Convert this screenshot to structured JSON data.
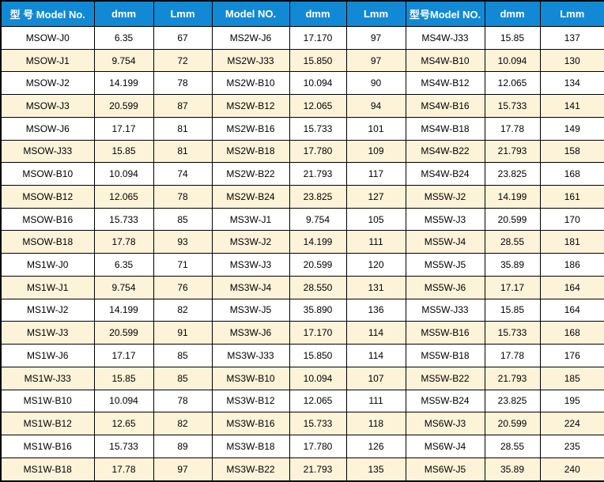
{
  "table": {
    "headers": [
      "型 号 Model No.",
      "dmm",
      "Lmm",
      "Model NO.",
      "dmm",
      "Lmm",
      "型号Model NO.",
      "dmm",
      "Lmm"
    ],
    "rows": [
      [
        "MSOW-J0",
        "6.35",
        "67",
        "MS2W-J6",
        "17.170",
        "97",
        "MS4W-J33",
        "15.85",
        "137"
      ],
      [
        "MSOW-J1",
        "9.754",
        "72",
        "MS2W-J33",
        "15.850",
        "97",
        "MS4W-B10",
        "10.094",
        "130"
      ],
      [
        "MSOW-J2",
        "14.199",
        "78",
        "MS2W-B10",
        "10.094",
        "90",
        "MS4W-B12",
        "12.065",
        "134"
      ],
      [
        "MSOW-J3",
        "20.599",
        "87",
        "MS2W-B12",
        "12.065",
        "94",
        "MS4W-B16",
        "15.733",
        "141"
      ],
      [
        "MSOW-J6",
        "17.17",
        "81",
        "MS2W-B16",
        "15.733",
        "101",
        "MS4W-B18",
        "17.78",
        "149"
      ],
      [
        "MSOW-J33",
        "15.85",
        "81",
        "MS2W-B18",
        "17.780",
        "109",
        "MS4W-B22",
        "21.793",
        "158"
      ],
      [
        "MSOW-B10",
        "10.094",
        "74",
        "MS2W-B22",
        "21.793",
        "117",
        "MS4W-B24",
        "23.825",
        "168"
      ],
      [
        "MSOW-B12",
        "12.065",
        "78",
        "MS2W-B24",
        "23.825",
        "127",
        "MS5W-J2",
        "14.199",
        "161"
      ],
      [
        "MSOW-B16",
        "15.733",
        "85",
        "MS3W-J1",
        "9.754",
        "105",
        "MS5W-J3",
        "20.599",
        "170"
      ],
      [
        "MSOW-B18",
        "17.78",
        "93",
        "MS3W-J2",
        "14.199",
        "111",
        "MS5W-J4",
        "28.55",
        "181"
      ],
      [
        "MS1W-J0",
        "6.35",
        "71",
        "MS3W-J3",
        "20.599",
        "120",
        "MS5W-J5",
        "35.89",
        "186"
      ],
      [
        "MS1W-J1",
        "9.754",
        "76",
        "MS3W-J4",
        "28.550",
        "131",
        "MS5W-J6",
        "17.17",
        "164"
      ],
      [
        "MS1W-J2",
        "14.199",
        "82",
        "MS3W-J5",
        "35.890",
        "136",
        "MS5W-J33",
        "15.85",
        "164"
      ],
      [
        "MS1W-J3",
        "20.599",
        "91",
        "MS3W-J6",
        "17.170",
        "114",
        "MS5W-B16",
        "15.733",
        "168"
      ],
      [
        "MS1W-J6",
        "17.17",
        "85",
        "MS3W-J33",
        "15.850",
        "114",
        "MS5W-B18",
        "17.78",
        "176"
      ],
      [
        "MS1W-J33",
        "15.85",
        "85",
        "MS3W-B10",
        "10.094",
        "107",
        "MS5W-B22",
        "21.793",
        "185"
      ],
      [
        "MS1W-B10",
        "10.094",
        "78",
        "MS3W-B12",
        "12.065",
        "111",
        "MS5W-B24",
        "23.825",
        "195"
      ],
      [
        "MS1W-B12",
        "12.65",
        "82",
        "MS3W-B16",
        "15.733",
        "118",
        "MS6W-J3",
        "20.599",
        "224"
      ],
      [
        "MS1W-B16",
        "15.733",
        "89",
        "MS3W-B18",
        "17.780",
        "126",
        "MS6W-J4",
        "28.55",
        "235"
      ],
      [
        "MS1W-B18",
        "17.78",
        "97",
        "MS3W-B22",
        "21.793",
        "135",
        "MS6W-J5",
        "35.89",
        "240"
      ]
    ]
  },
  "colors": {
    "header_bg": "#1289d4",
    "header_text": "#ffffff",
    "row_bg": "#ffffff",
    "row_alt_bg": "#fcf3d9",
    "border": "#000000"
  }
}
